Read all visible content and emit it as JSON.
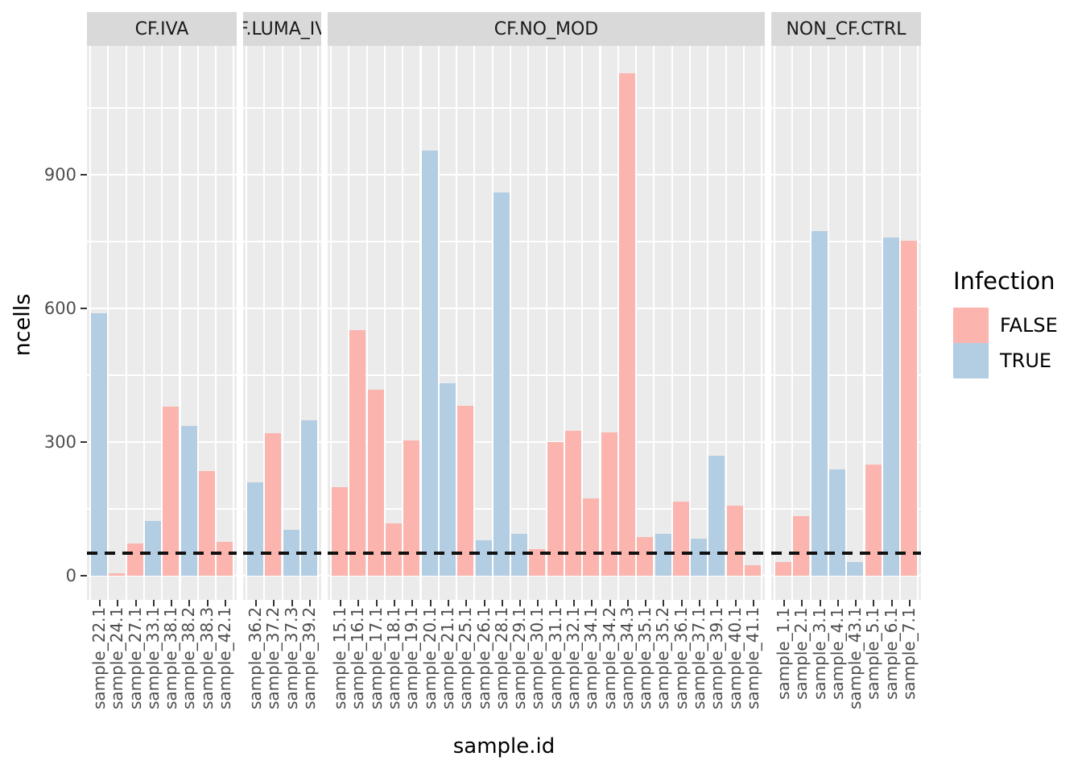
{
  "y_axis": {
    "label": "ncells",
    "ticks": [
      0,
      300,
      600,
      900
    ]
  },
  "x_axis": {
    "label": "sample.id"
  },
  "legend": {
    "title": "Infection",
    "items": [
      {
        "label": "FALSE",
        "color": "#FBB4AE"
      },
      {
        "label": "TRUE",
        "color": "#B3CDE3"
      }
    ]
  },
  "reference_line": {
    "y": 50,
    "style": "dashed",
    "color": "#111111"
  },
  "colors": {
    "false_fill": "#FBB4AE",
    "true_fill": "#B3CDE3",
    "panel_bg": "#EBEBEB",
    "strip_bg": "#D9D9D9",
    "grid": "#ffffff",
    "axis_text": "#4d4d4d"
  },
  "chart_data": {
    "type": "bar",
    "ylabel": "ncells",
    "xlabel": "sample.id",
    "ylim": [
      0,
      1150
    ],
    "grid": true,
    "legend_position": "right",
    "facets": [
      {
        "label": "CF.IVA",
        "bars": [
          {
            "x": "sample_22.1",
            "infection": "TRUE",
            "ncells": 590
          },
          {
            "x": "sample_24.1",
            "infection": "FALSE",
            "ncells": 5
          },
          {
            "x": "sample_27.1",
            "infection": "FALSE",
            "ncells": 72
          },
          {
            "x": "sample_33.1",
            "infection": "TRUE",
            "ncells": 123
          },
          {
            "x": "sample_38.1",
            "infection": "FALSE",
            "ncells": 379
          },
          {
            "x": "sample_38.2",
            "infection": "TRUE",
            "ncells": 336
          },
          {
            "x": "sample_38.3",
            "infection": "FALSE",
            "ncells": 235
          },
          {
            "x": "sample_42.1",
            "infection": "FALSE",
            "ncells": 76
          }
        ]
      },
      {
        "label": "CF.LUMA_IVA",
        "bars": [
          {
            "x": "sample_36.2",
            "infection": "TRUE",
            "ncells": 210
          },
          {
            "x": "sample_37.2",
            "infection": "FALSE",
            "ncells": 320
          },
          {
            "x": "sample_37.3",
            "infection": "TRUE",
            "ncells": 103
          },
          {
            "x": "sample_39.2",
            "infection": "TRUE",
            "ncells": 349
          }
        ]
      },
      {
        "label": "CF.NO_MOD",
        "bars": [
          {
            "x": "sample_15.1",
            "infection": "FALSE",
            "ncells": 199
          },
          {
            "x": "sample_16.1",
            "infection": "FALSE",
            "ncells": 551
          },
          {
            "x": "sample_17.1",
            "infection": "FALSE",
            "ncells": 417
          },
          {
            "x": "sample_18.1",
            "infection": "FALSE",
            "ncells": 117
          },
          {
            "x": "sample_19.1",
            "infection": "FALSE",
            "ncells": 303
          },
          {
            "x": "sample_20.1",
            "infection": "TRUE",
            "ncells": 954
          },
          {
            "x": "sample_21.1",
            "infection": "TRUE",
            "ncells": 432
          },
          {
            "x": "sample_25.1",
            "infection": "FALSE",
            "ncells": 381
          },
          {
            "x": "sample_26.1",
            "infection": "TRUE",
            "ncells": 80
          },
          {
            "x": "sample_28.1",
            "infection": "TRUE",
            "ncells": 860
          },
          {
            "x": "sample_29.1",
            "infection": "TRUE",
            "ncells": 94
          },
          {
            "x": "sample_30.1",
            "infection": "FALSE",
            "ncells": 60
          },
          {
            "x": "sample_31.1",
            "infection": "FALSE",
            "ncells": 300
          },
          {
            "x": "sample_32.1",
            "infection": "FALSE",
            "ncells": 325
          },
          {
            "x": "sample_34.1",
            "infection": "FALSE",
            "ncells": 173
          },
          {
            "x": "sample_34.2",
            "infection": "FALSE",
            "ncells": 322
          },
          {
            "x": "sample_34.3",
            "infection": "FALSE",
            "ncells": 1128
          },
          {
            "x": "sample_35.1",
            "infection": "FALSE",
            "ncells": 87
          },
          {
            "x": "sample_35.2",
            "infection": "TRUE",
            "ncells": 94
          },
          {
            "x": "sample_36.1",
            "infection": "FALSE",
            "ncells": 166
          },
          {
            "x": "sample_37.1",
            "infection": "TRUE",
            "ncells": 83
          },
          {
            "x": "sample_39.1",
            "infection": "TRUE",
            "ncells": 269
          },
          {
            "x": "sample_40.1",
            "infection": "FALSE",
            "ncells": 157
          },
          {
            "x": "sample_41.1",
            "infection": "FALSE",
            "ncells": 23
          }
        ]
      },
      {
        "label": "NON_CF.CTRL",
        "bars": [
          {
            "x": "sample_1.1",
            "infection": "FALSE",
            "ncells": 30
          },
          {
            "x": "sample_2.1",
            "infection": "FALSE",
            "ncells": 134
          },
          {
            "x": "sample_3.1",
            "infection": "TRUE",
            "ncells": 774
          },
          {
            "x": "sample_4.1",
            "infection": "TRUE",
            "ncells": 239
          },
          {
            "x": "sample_43.1",
            "infection": "TRUE",
            "ncells": 30
          },
          {
            "x": "sample_5.1",
            "infection": "FALSE",
            "ncells": 249
          },
          {
            "x": "sample_6.1",
            "infection": "TRUE",
            "ncells": 759
          },
          {
            "x": "sample_7.1",
            "infection": "FALSE",
            "ncells": 752
          }
        ]
      }
    ]
  }
}
